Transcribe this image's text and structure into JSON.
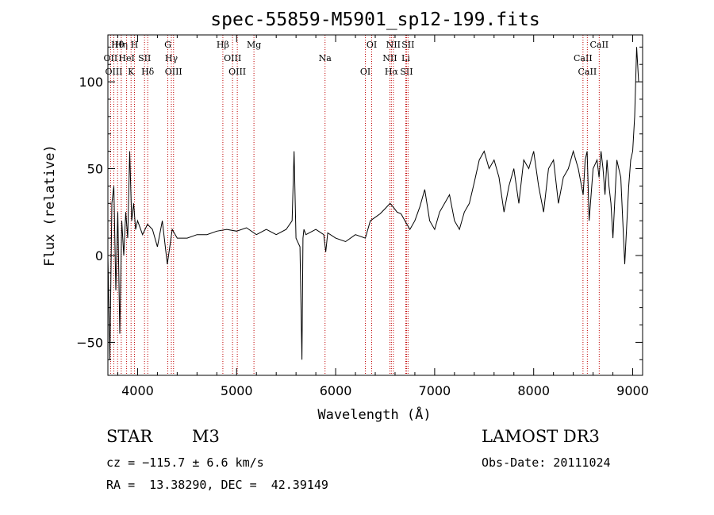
{
  "chart_data": {
    "type": "line",
    "title": "spec-55859-M5901_sp12-199.fits",
    "xlabel": "Wavelength (Å)",
    "ylabel": "Flux (relative)",
    "xlim": [
      3700,
      9100
    ],
    "ylim": [
      -69,
      127
    ],
    "xticks": [
      4000,
      5000,
      6000,
      7000,
      8000,
      9000
    ],
    "yticks": [
      -50,
      0,
      50,
      100
    ],
    "series": [
      {
        "name": "flux",
        "color": "#000000",
        "x": [
          3700,
          3720,
          3740,
          3760,
          3780,
          3800,
          3820,
          3840,
          3860,
          3880,
          3900,
          3920,
          3940,
          3960,
          3980,
          4000,
          4050,
          4100,
          4150,
          4200,
          4250,
          4300,
          4350,
          4400,
          4500,
          4600,
          4700,
          4800,
          4900,
          5000,
          5100,
          5200,
          5300,
          5400,
          5500,
          5560,
          5580,
          5600,
          5640,
          5660,
          5670,
          5680,
          5700,
          5800,
          5880,
          5900,
          5920,
          6000,
          6100,
          6200,
          6300,
          6350,
          6400,
          6450,
          6500,
          6550,
          6580,
          6620,
          6660,
          6700,
          6750,
          6800,
          6850,
          6900,
          6950,
          7000,
          7050,
          7100,
          7150,
          7200,
          7250,
          7300,
          7350,
          7400,
          7450,
          7500,
          7550,
          7600,
          7650,
          7700,
          7750,
          7800,
          7850,
          7900,
          7950,
          8000,
          8050,
          8100,
          8150,
          8200,
          8250,
          8300,
          8350,
          8400,
          8450,
          8500,
          8520,
          8540,
          8560,
          8600,
          8640,
          8660,
          8680,
          8700,
          8720,
          8740,
          8760,
          8780,
          8800,
          8840,
          8880,
          8920,
          8960,
          8980,
          9000,
          9020,
          9040,
          9060
        ],
        "y": [
          0,
          -60,
          30,
          40,
          -20,
          25,
          -45,
          20,
          0,
          25,
          10,
          60,
          20,
          30,
          15,
          20,
          12,
          18,
          15,
          5,
          20,
          -5,
          15,
          10,
          10,
          12,
          12,
          14,
          15,
          14,
          16,
          12,
          15,
          12,
          15,
          20,
          60,
          10,
          5,
          -60,
          10,
          15,
          12,
          15,
          12,
          2,
          13,
          10,
          8,
          12,
          10,
          20,
          22,
          24,
          27,
          30,
          28,
          25,
          24,
          20,
          15,
          20,
          28,
          38,
          20,
          15,
          25,
          30,
          35,
          20,
          15,
          25,
          30,
          42,
          55,
          60,
          50,
          55,
          45,
          25,
          40,
          50,
          30,
          55,
          50,
          60,
          40,
          25,
          50,
          55,
          30,
          45,
          50,
          60,
          50,
          35,
          55,
          60,
          20,
          50,
          55,
          45,
          60,
          50,
          35,
          55,
          40,
          30,
          10,
          55,
          45,
          -5,
          40,
          55,
          60,
          80,
          120,
          100
        ]
      }
    ],
    "lines": [
      {
        "name": "Hθ",
        "x": 3798
      },
      {
        "name": "OII",
        "x": 3727
      },
      {
        "name": "OIII",
        "x": 3760
      },
      {
        "name": "Hη",
        "x": 3835
      },
      {
        "name": "HeI",
        "x": 3889
      },
      {
        "name": "K",
        "x": 3934
      },
      {
        "name": "H",
        "x": 3968
      },
      {
        "name": "SII",
        "x": 4070
      },
      {
        "name": "Hδ",
        "x": 4102
      },
      {
        "name": "G",
        "x": 4305
      },
      {
        "name": "Hγ",
        "x": 4341
      },
      {
        "name": "OIII",
        "x": 4363
      },
      {
        "name": "Hβ",
        "x": 4861
      },
      {
        "name": "OIII",
        "x": 4959
      },
      {
        "name": "OIII",
        "x": 5007
      },
      {
        "name": "Mg",
        "x": 5175
      },
      {
        "name": "Na",
        "x": 5893
      },
      {
        "name": "OI",
        "x": 6300
      },
      {
        "name": "OI",
        "x": 6364
      },
      {
        "name": "NII",
        "x": 6548
      },
      {
        "name": "Hα",
        "x": 6563
      },
      {
        "name": "NII",
        "x": 6583
      },
      {
        "name": "Li",
        "x": 6708
      },
      {
        "name": "SII",
        "x": 6716
      },
      {
        "name": "SII",
        "x": 6731
      },
      {
        "name": "CaII",
        "x": 8498
      },
      {
        "name": "CaII",
        "x": 8542
      },
      {
        "name": "CaII",
        "x": 8662
      }
    ]
  },
  "info": {
    "object_class": "STAR",
    "subclass": "M3",
    "cz": "cz = −115.7 ± 6.6 km/s",
    "coords": "RA =  13.38290, DEC =  42.39149",
    "survey": "LAMOST DR3",
    "obs_date": "Obs-Date: 20111024"
  }
}
